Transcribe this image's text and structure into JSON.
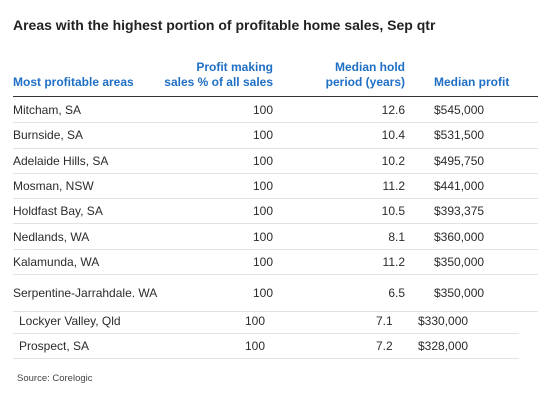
{
  "title": "Areas with the highest portion of profitable home sales, Sep qtr",
  "table": {
    "columns": [
      "Most profitable areas",
      "Profit making sales % of all sales",
      "Median hold period (years)",
      "Median profit"
    ],
    "column_lines": [
      [
        "Most profitable areas"
      ],
      [
        "Profit making",
        "sales % of all sales"
      ],
      [
        "Median hold",
        "period (years)"
      ],
      [
        "Median profit"
      ]
    ],
    "rows": [
      [
        "Mitcham, SA",
        "100",
        "12.6",
        "$545,000"
      ],
      [
        "Burnside, SA",
        "100",
        "10.4",
        "$531,500"
      ],
      [
        "Adelaide Hills, SA",
        "100",
        "10.2",
        "$495,750"
      ],
      [
        "Mosman, NSW",
        "100",
        "11.2",
        "$441,000"
      ],
      [
        "Holdfast Bay, SA",
        "100",
        "10.5",
        "$393,375"
      ],
      [
        "Nedlands, WA",
        "100",
        "8.1",
        "$360,000"
      ],
      [
        "Kalamunda, WA",
        "100",
        "11.2",
        "$350,000"
      ],
      [
        "Serpentine-Jarrahdale. WA",
        "100",
        "6.5",
        "$350,000"
      ]
    ],
    "extra_rows": [
      [
        "Lockyer Valley, Qld",
        "100",
        "7.1",
        "$330,000"
      ],
      [
        "Prospect, SA",
        "100",
        "7.2",
        "$328,000"
      ]
    ]
  },
  "source": "Source: Corelogic",
  "colors": {
    "header_text": "#1f6fc5",
    "title_text": "#222222"
  }
}
